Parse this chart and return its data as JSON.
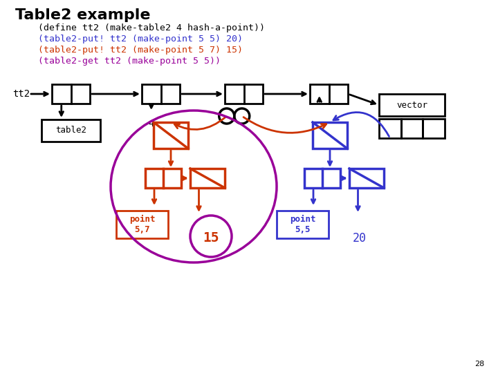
{
  "title": "Table2 example",
  "line1": "(define tt2 (make-table2 4 hash-a-point))",
  "line2": "(table2-put! tt2 (make-point 5 5) 20)",
  "line3": "(table2-put! tt2 (make-point 5 7) 15)",
  "line4": "(table2-get tt2 (make-point 5 5))",
  "bg_color": "#ffffff",
  "black": "#000000",
  "blue": "#3333cc",
  "orange": "#cc3300",
  "purple": "#990099"
}
